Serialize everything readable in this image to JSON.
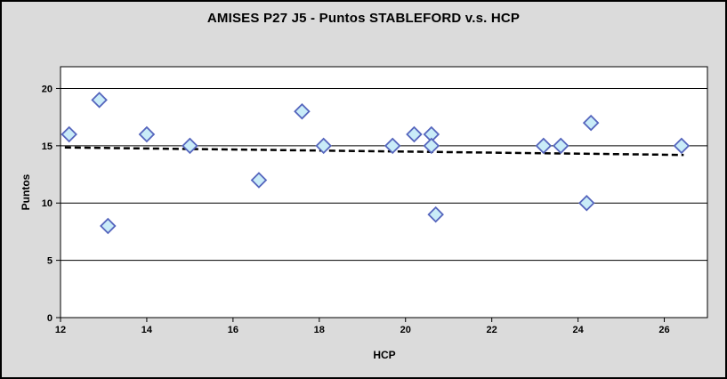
{
  "window": {
    "background_color": "#dbdbdb",
    "border_color": "#000000",
    "plot_background_color": "#ffffff"
  },
  "chart_data": {
    "type": "scatter",
    "title": "AMISES P27 J5 - Puntos STABLEFORD v.s. HCP",
    "xlabel": "HCP",
    "ylabel": "Puntos",
    "xlim": [
      12,
      27
    ],
    "ylim": [
      0,
      21.9
    ],
    "x_ticks": [
      12,
      14,
      16,
      18,
      20,
      22,
      24,
      26
    ],
    "y_ticks": [
      0,
      5,
      10,
      15,
      20
    ],
    "grid": "horizontal-only",
    "gridline_color": "#000000",
    "legend_position": "none",
    "series": [
      {
        "name": "Puntos STABLEFORD vs HCP",
        "marker": "diamond",
        "marker_fill": "#c9ecf8",
        "marker_stroke": "#5565bd",
        "points": [
          {
            "x": 12.2,
            "y": 16
          },
          {
            "x": 12.9,
            "y": 19
          },
          {
            "x": 13.1,
            "y": 8
          },
          {
            "x": 14.0,
            "y": 16
          },
          {
            "x": 15.0,
            "y": 15
          },
          {
            "x": 16.6,
            "y": 12
          },
          {
            "x": 17.6,
            "y": 18
          },
          {
            "x": 18.1,
            "y": 15
          },
          {
            "x": 19.7,
            "y": 15
          },
          {
            "x": 20.2,
            "y": 16
          },
          {
            "x": 20.6,
            "y": 16
          },
          {
            "x": 20.6,
            "y": 15
          },
          {
            "x": 20.7,
            "y": 9
          },
          {
            "x": 23.2,
            "y": 15
          },
          {
            "x": 23.6,
            "y": 15
          },
          {
            "x": 24.2,
            "y": 10
          },
          {
            "x": 24.3,
            "y": 17
          },
          {
            "x": 26.4,
            "y": 15
          }
        ]
      }
    ],
    "trendline": {
      "style": "dashed",
      "color": "#000000",
      "x1": 12.1,
      "y1": 14.85,
      "x2": 26.45,
      "y2": 14.2
    }
  }
}
